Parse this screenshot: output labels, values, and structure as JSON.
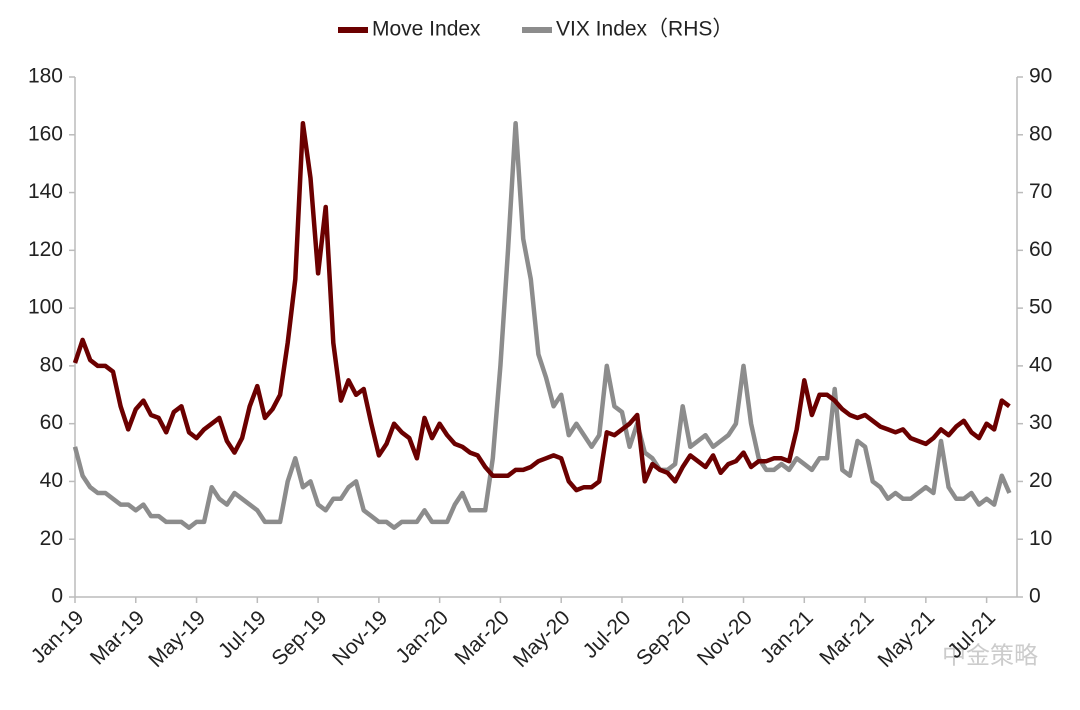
{
  "chart_data": {
    "type": "line",
    "categories": [
      "Jan-19",
      null,
      null,
      null,
      null,
      null,
      null,
      null,
      "Mar-19",
      null,
      null,
      null,
      null,
      null,
      null,
      null,
      "May-19",
      null,
      null,
      null,
      null,
      null,
      null,
      null,
      "Jul-19",
      null,
      null,
      null,
      null,
      null,
      null,
      null,
      "Sep-19",
      null,
      null,
      null,
      null,
      null,
      null,
      null,
      "Nov-19",
      null,
      null,
      null,
      null,
      null,
      null,
      null,
      "Jan-20",
      null,
      null,
      null,
      null,
      null,
      null,
      null,
      "Mar-20",
      null,
      null,
      null,
      null,
      null,
      null,
      null,
      "May-20",
      null,
      null,
      null,
      null,
      null,
      null,
      null,
      "Jul-20",
      null,
      null,
      null,
      null,
      null,
      null,
      null,
      "Sep-20",
      null,
      null,
      null,
      null,
      null,
      null,
      null,
      "Nov-20",
      null,
      null,
      null,
      null,
      null,
      null,
      null,
      "Jan-21",
      null,
      null,
      null,
      null,
      null,
      null,
      null,
      "Mar-21",
      null,
      null,
      null,
      null,
      null,
      null,
      null,
      "May-21",
      null,
      null,
      null,
      null,
      null,
      null,
      null,
      "Jul-21",
      null,
      null,
      null
    ],
    "series": [
      {
        "name": "Move Index",
        "color": "#6b0000",
        "values": [
          81,
          89,
          82,
          80,
          80,
          78,
          66,
          58,
          65,
          68,
          63,
          62,
          57,
          64,
          66,
          57,
          55,
          58,
          60,
          62,
          54,
          50,
          55,
          66,
          73,
          62,
          65,
          70,
          88,
          110,
          164,
          145,
          112,
          135,
          88,
          68,
          75,
          70,
          72,
          60,
          49,
          53,
          60,
          57,
          55,
          48,
          62,
          55,
          60,
          56,
          53,
          52,
          50,
          49,
          45,
          42,
          42,
          42,
          44,
          44,
          45,
          47,
          48,
          49,
          48,
          40,
          37,
          38,
          38,
          40,
          57,
          56,
          58,
          60,
          63,
          40,
          46,
          44,
          43,
          40,
          45,
          49,
          47,
          45,
          49,
          43,
          46,
          47,
          50,
          45,
          47,
          47,
          48,
          48,
          47,
          58,
          75,
          63,
          70,
          70,
          68,
          65,
          63,
          62,
          63,
          61,
          59,
          58,
          57,
          58,
          55,
          54,
          53,
          55,
          58,
          56,
          59,
          61,
          57,
          55,
          60,
          58,
          68,
          66
        ]
      },
      {
        "name": "VIX Index（RHS）",
        "color": "#8c8c8c",
        "axis": "y2",
        "values": [
          26,
          21,
          19,
          18,
          18,
          17,
          16,
          16,
          15,
          16,
          14,
          14,
          13,
          13,
          13,
          12,
          13,
          13,
          19,
          17,
          16,
          18,
          17,
          16,
          15,
          13,
          13,
          13,
          20,
          24,
          19,
          20,
          16,
          15,
          17,
          17,
          19,
          20,
          15,
          14,
          13,
          13,
          12,
          13,
          13,
          13,
          15,
          13,
          13,
          13,
          16,
          18,
          15,
          15,
          15,
          24,
          40,
          60,
          82,
          62,
          55,
          42,
          38,
          33,
          35,
          28,
          30,
          28,
          26,
          28,
          40,
          33,
          32,
          26,
          30,
          25,
          24,
          22,
          22,
          23,
          33,
          26,
          27,
          28,
          26,
          27,
          28,
          30,
          40,
          30,
          24,
          22,
          22,
          23,
          22,
          24,
          23,
          22,
          24,
          24,
          36,
          22,
          21,
          27,
          26,
          20,
          19,
          17,
          18,
          17,
          17,
          18,
          19,
          18,
          27,
          19,
          17,
          17,
          18,
          16,
          17,
          16,
          21,
          18
        ]
      }
    ],
    "ylim": [
      0,
      180
    ],
    "yticks": [
      0,
      20,
      40,
      60,
      80,
      100,
      120,
      140,
      160,
      180
    ],
    "y2lim": [
      0,
      90
    ],
    "y2ticks": [
      0,
      10,
      20,
      30,
      40,
      50,
      60,
      70,
      80,
      90
    ],
    "legend": "top",
    "watermark": "中金策略"
  }
}
